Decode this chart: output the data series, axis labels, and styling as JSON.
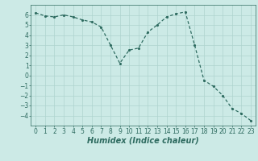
{
  "x": [
    0,
    1,
    2,
    3,
    4,
    5,
    6,
    7,
    8,
    9,
    10,
    11,
    12,
    13,
    14,
    15,
    16,
    17,
    18,
    19,
    20,
    21,
    22,
    23
  ],
  "y": [
    6.2,
    5.9,
    5.8,
    6.0,
    5.8,
    5.5,
    5.3,
    4.8,
    3.0,
    1.2,
    2.5,
    2.7,
    4.3,
    5.0,
    5.8,
    6.1,
    6.3,
    3.0,
    -0.5,
    -1.1,
    -2.0,
    -3.3,
    -3.8,
    -4.5
  ],
  "line_color": "#2e6b60",
  "bg_color": "#cceae6",
  "grid_color": "#aed4cf",
  "xlabel": "Humidex (Indice chaleur)",
  "ylim": [
    -5,
    7
  ],
  "xlim": [
    -0.5,
    23.5
  ],
  "yticks": [
    -4,
    -3,
    -2,
    -1,
    0,
    1,
    2,
    3,
    4,
    5,
    6
  ],
  "xticks": [
    0,
    1,
    2,
    3,
    4,
    5,
    6,
    7,
    8,
    9,
    10,
    11,
    12,
    13,
    14,
    15,
    16,
    17,
    18,
    19,
    20,
    21,
    22,
    23
  ],
  "xlabel_fontsize": 7,
  "tick_fontsize": 5.5,
  "marker_size": 2.5,
  "linewidth": 0.9
}
